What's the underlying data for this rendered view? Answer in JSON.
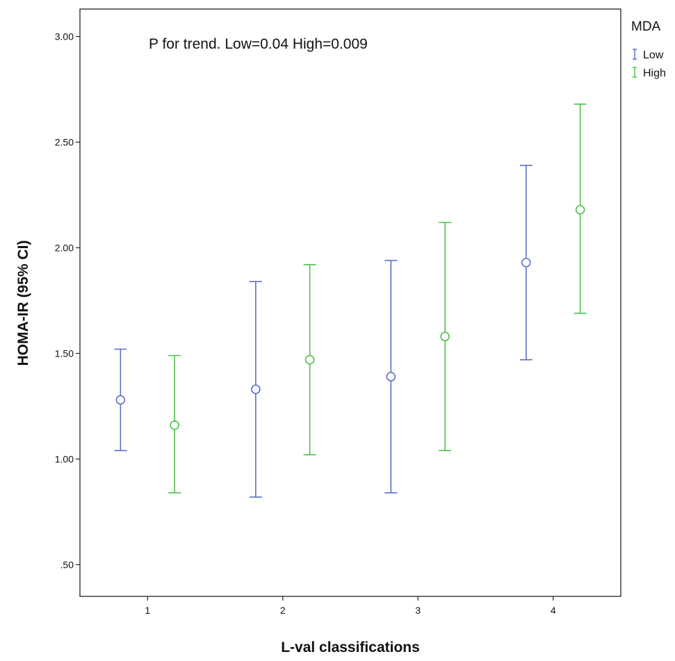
{
  "chart_data": {
    "type": "errorbar",
    "title": "",
    "annotation": "P for trend. Low=0.04 High=0.009",
    "xlabel": "L-val classifications",
    "ylabel": "HOMA-IR (95% CI)",
    "categories": [
      "1",
      "2",
      "3",
      "4"
    ],
    "xlim": [
      0.5,
      4.5
    ],
    "ylim": [
      0.35,
      3.13
    ],
    "yticks": [
      0.5,
      1.0,
      1.5,
      2.0,
      2.5,
      3.0
    ],
    "ytick_labels": [
      ".50",
      "1.00",
      "1.50",
      "2.00",
      "2.50",
      "3.00"
    ],
    "grid": false,
    "legend": {
      "title": "MDA",
      "placement": "outside-top-right"
    },
    "series": [
      {
        "name": "Low",
        "color": "#5a6fc7",
        "offset": -0.2,
        "mean": [
          1.28,
          1.33,
          1.39,
          1.93
        ],
        "lower": [
          1.04,
          0.82,
          0.84,
          1.47
        ],
        "upper": [
          1.52,
          1.84,
          1.94,
          2.39
        ]
      },
      {
        "name": "High",
        "color": "#4cc24c",
        "offset": 0.2,
        "mean": [
          1.16,
          1.47,
          1.58,
          2.18
        ],
        "lower": [
          0.84,
          1.02,
          1.04,
          1.69
        ],
        "upper": [
          1.49,
          1.92,
          2.12,
          2.68
        ]
      }
    ]
  }
}
